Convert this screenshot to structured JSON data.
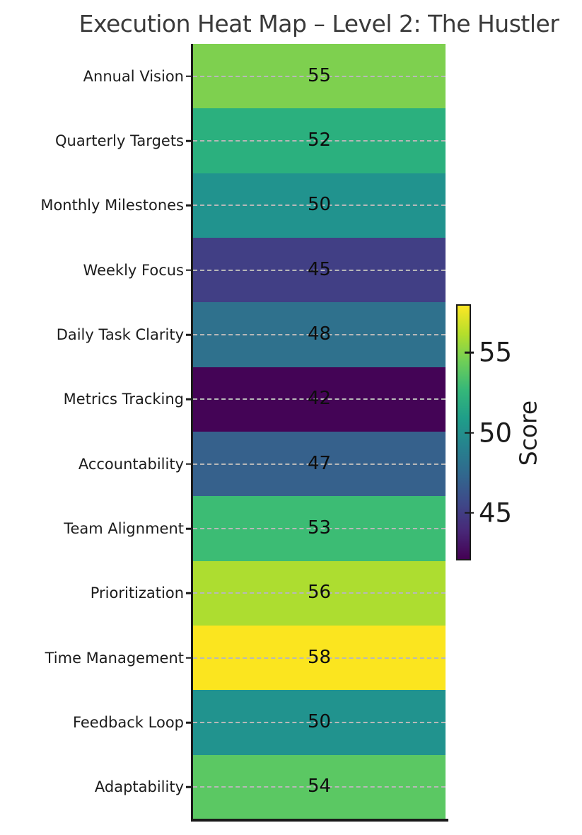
{
  "chart_data": {
    "type": "heatmap",
    "title": "Execution Heat Map – Level 2: The Hustler",
    "categories": [
      "Annual Vision",
      "Quarterly Targets",
      "Monthly Milestones",
      "Weekly Focus",
      "Daily Task Clarity",
      "Metrics Tracking",
      "Accountability",
      "Team Alignment",
      "Prioritization",
      "Time Management",
      "Feedback Loop",
      "Adaptability"
    ],
    "values": [
      55,
      52,
      50,
      45,
      48,
      42,
      47,
      53,
      56,
      58,
      50,
      54
    ],
    "cell_colors": [
      "#7ed04f",
      "#2bb07e",
      "#21938e",
      "#413f85",
      "#2f718d",
      "#440456",
      "#36618c",
      "#3cbc74",
      "#addd30",
      "#fbe51f",
      "#21938e",
      "#5bc863"
    ],
    "value_range": [
      42,
      58
    ],
    "grid": "dashed horizontal line at each row center",
    "annotations": "cell value printed at center of each row",
    "colorbar": {
      "label": "Score",
      "ticks": [
        45,
        50,
        55
      ],
      "vmin": 42,
      "vmax": 58,
      "colormap": "viridis",
      "position": "right",
      "gradient_stops_bottom_to_top": [
        "#440154",
        "#482878",
        "#3e4989",
        "#31688e",
        "#26828e",
        "#1f9e89",
        "#35b779",
        "#6ece58",
        "#b5de2b",
        "#fde725"
      ]
    },
    "text_colors": {
      "title": "#3a3a3a",
      "labels": "#1c1c1c",
      "values": "#0d0d0d",
      "spines": "#1a1a1a",
      "gridline": "#b8b8b8"
    }
  }
}
